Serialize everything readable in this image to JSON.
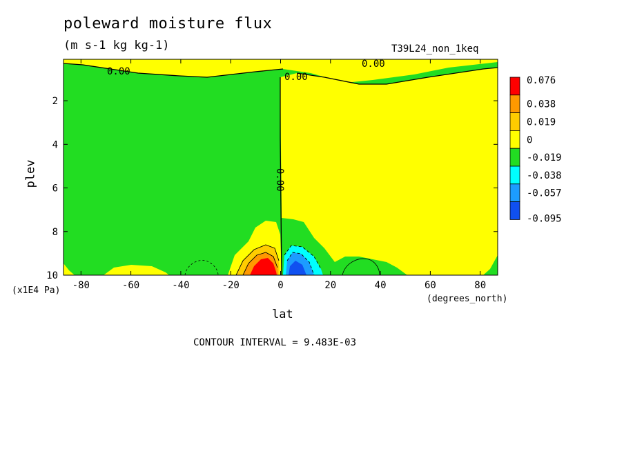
{
  "chart_data": {
    "type": "contour",
    "title": "poleward moisture flux",
    "units": "(m s-1 kg kg-1)",
    "run_name": "T39L24_non_1keq",
    "xlabel": "lat",
    "x_unit": "(degrees_north)",
    "ylabel": "plev",
    "y_unit": "(x1E4 Pa)",
    "xlim": [
      -87,
      87
    ],
    "ylim": [
      10,
      0.1
    ],
    "x_ticks": [
      -80,
      -60,
      -40,
      -20,
      0,
      20,
      40,
      60,
      80
    ],
    "y_ticks": [
      2,
      4,
      6,
      8,
      10
    ],
    "contour_interval_text": "CONTOUR INTERVAL = 9.483E-03",
    "contour_labels": [
      "0.00",
      "0.00",
      "0.00",
      "0.00"
    ],
    "colorbar": {
      "levels": [
        "0.076",
        "0.038",
        "0.019",
        "0",
        "-0.019",
        "-0.038",
        "-0.057",
        "-0.095"
      ],
      "colors": [
        "#ff0000",
        "#ff9900",
        "#ffcc00",
        "#ffff00",
        "#22dd22",
        "#00ffff",
        "#1c9cff",
        "#1050f0"
      ]
    }
  }
}
